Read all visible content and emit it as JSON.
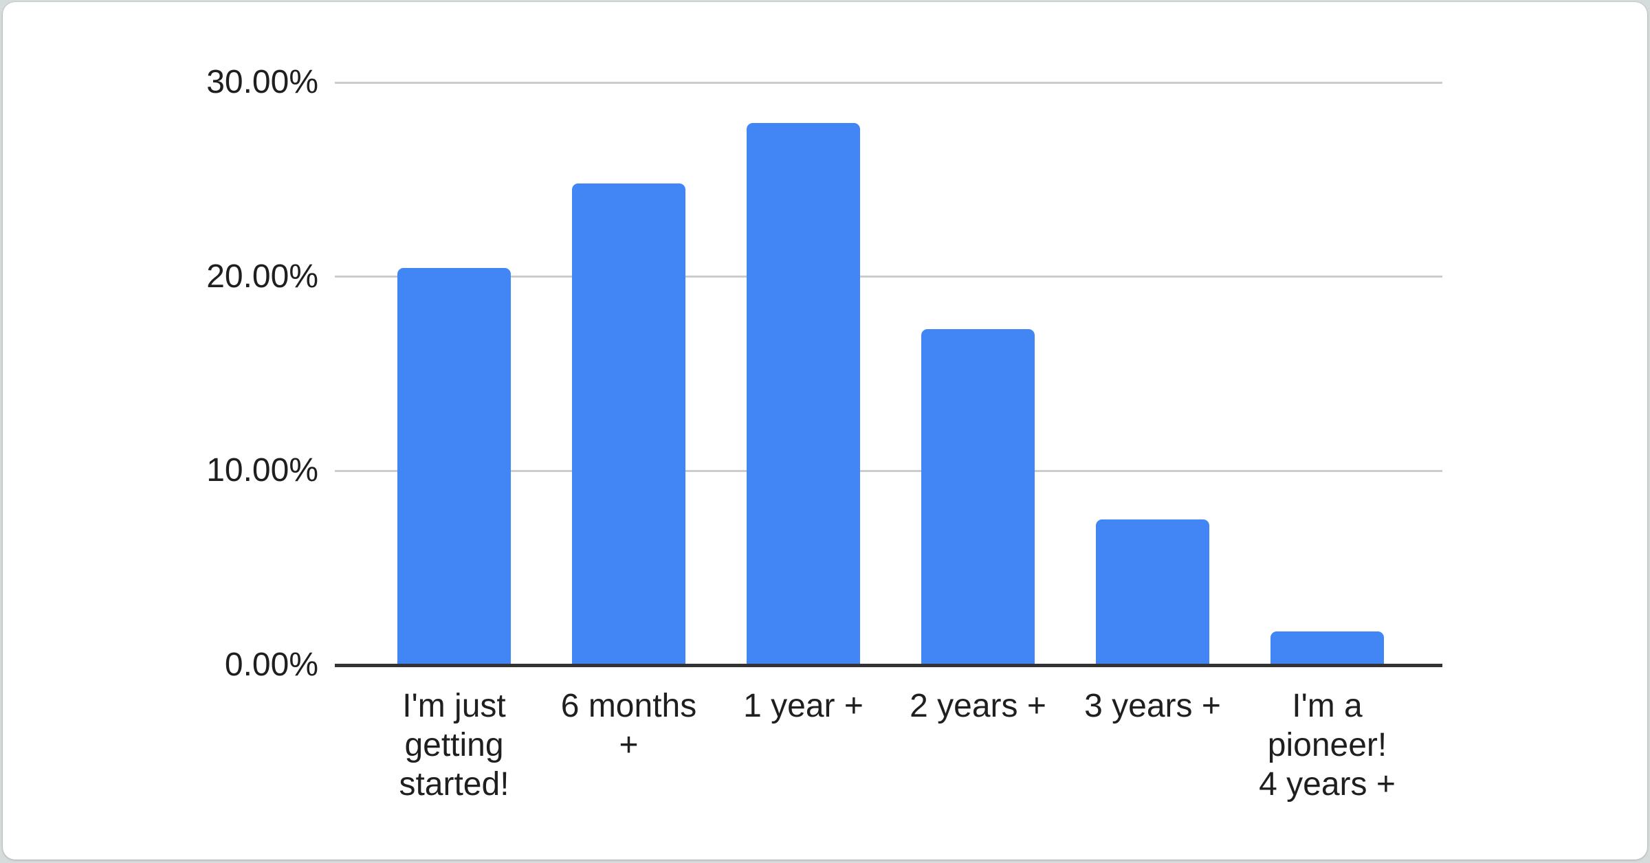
{
  "chart_data": {
    "type": "bar",
    "title": "",
    "categories": [
      "I'm just getting started!",
      "6 months +",
      "1 year +",
      "2 years +",
      "3 years +",
      "I'm a pioneer! 4 years +"
    ],
    "categories_wrapped": [
      "I'm just\ngetting\nstarted!",
      "6 months\n+",
      "1 year +",
      "2 years +",
      "3 years +",
      "I'm a\npioneer!\n4 years +"
    ],
    "values": [
      20.45,
      24.8,
      27.9,
      17.3,
      7.5,
      1.75
    ],
    "y_ticks": [
      "0.00%",
      "10.00%",
      "20.00%",
      "30.00%"
    ],
    "y_tick_values": [
      0,
      10,
      20,
      30
    ],
    "ylim": [
      0,
      30
    ],
    "grid": true,
    "legend": "none",
    "xlabel": "",
    "ylabel": "",
    "colors": {
      "bar": "#4285f4",
      "gridline": "#cccccc",
      "axis_baseline": "#333333",
      "label_text": "#1f1f1f",
      "card_background": "#ffffff",
      "page_background": "#d6dcdc"
    }
  }
}
